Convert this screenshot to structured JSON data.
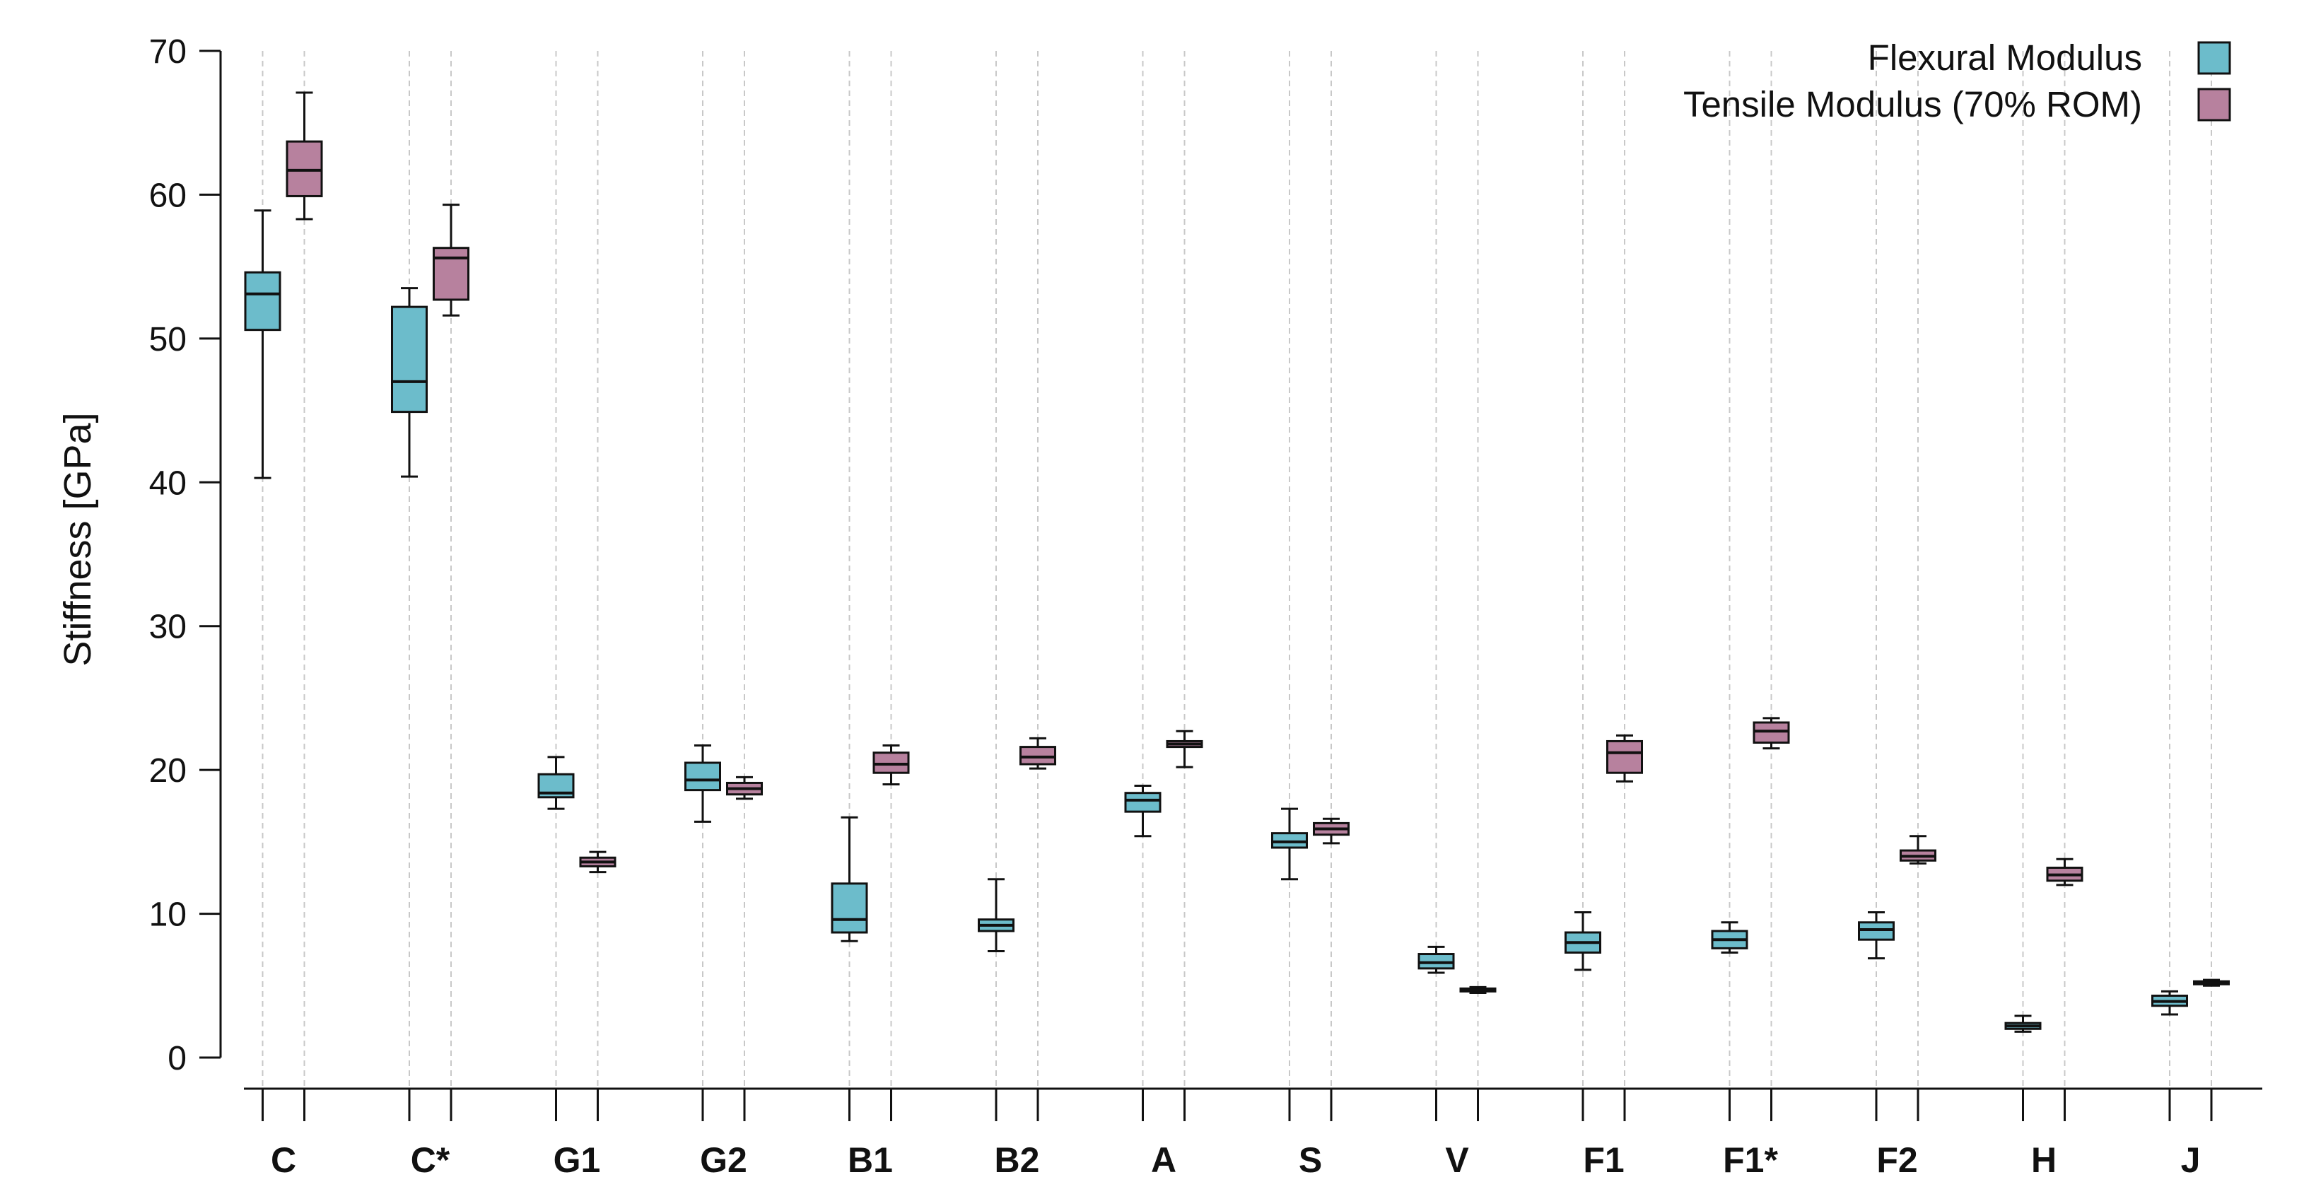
{
  "chart_data": {
    "type": "box",
    "title": "",
    "xlabel": "",
    "ylabel": "Stiffness [GPa]",
    "ylim": [
      0,
      70
    ],
    "yticks": [
      0,
      10,
      20,
      30,
      40,
      50,
      60,
      70
    ],
    "grid": "vertical dashed lines at each box position",
    "legend_placement": "top-right",
    "categories": [
      "C",
      "C*",
      "G1",
      "G2",
      "B1",
      "B2",
      "A",
      "S",
      "V",
      "F1",
      "F1*",
      "F2",
      "H",
      "J"
    ],
    "series": [
      {
        "name": "Flexural Modulus",
        "color": "#6cbccb",
        "boxes": [
          {
            "min": 40.3,
            "q1": 50.6,
            "median": 53.1,
            "q3": 54.6,
            "max": 58.9
          },
          {
            "min": 40.4,
            "q1": 44.9,
            "median": 47.0,
            "q3": 52.2,
            "max": 53.5
          },
          {
            "min": 17.3,
            "q1": 18.1,
            "median": 18.4,
            "q3": 19.7,
            "max": 20.9
          },
          {
            "min": 16.4,
            "q1": 18.6,
            "median": 19.3,
            "q3": 20.5,
            "max": 21.7
          },
          {
            "min": 8.1,
            "q1": 8.7,
            "median": 9.6,
            "q3": 12.1,
            "max": 16.7
          },
          {
            "min": 7.4,
            "q1": 8.8,
            "median": 9.2,
            "q3": 9.6,
            "max": 12.4
          },
          {
            "min": 15.4,
            "q1": 17.1,
            "median": 17.9,
            "q3": 18.4,
            "max": 18.9
          },
          {
            "min": 12.4,
            "q1": 14.6,
            "median": 15.0,
            "q3": 15.6,
            "max": 17.3
          },
          {
            "min": 5.9,
            "q1": 6.2,
            "median": 6.6,
            "q3": 7.2,
            "max": 7.7
          },
          {
            "min": 6.1,
            "q1": 7.3,
            "median": 8.0,
            "q3": 8.7,
            "max": 10.1
          },
          {
            "min": 7.3,
            "q1": 7.6,
            "median": 8.2,
            "q3": 8.8,
            "max": 9.4
          },
          {
            "min": 6.9,
            "q1": 8.2,
            "median": 8.9,
            "q3": 9.4,
            "max": 10.1
          },
          {
            "min": 1.8,
            "q1": 2.0,
            "median": 2.2,
            "q3": 2.4,
            "max": 2.9
          },
          {
            "min": 3.0,
            "q1": 3.6,
            "median": 3.9,
            "q3": 4.3,
            "max": 4.6
          }
        ]
      },
      {
        "name": "Tensile Modulus (70% ROM)",
        "color": "#b7819e",
        "boxes": [
          {
            "min": 58.3,
            "q1": 59.9,
            "median": 61.7,
            "q3": 63.7,
            "max": 67.1
          },
          {
            "min": 51.6,
            "q1": 52.7,
            "median": 55.6,
            "q3": 56.3,
            "max": 59.3
          },
          {
            "min": 12.9,
            "q1": 13.3,
            "median": 13.6,
            "q3": 13.9,
            "max": 14.3
          },
          {
            "min": 18.0,
            "q1": 18.3,
            "median": 18.7,
            "q3": 19.1,
            "max": 19.5
          },
          {
            "min": 19.0,
            "q1": 19.8,
            "median": 20.4,
            "q3": 21.2,
            "max": 21.7
          },
          {
            "min": 20.1,
            "q1": 20.4,
            "median": 20.9,
            "q3": 21.6,
            "max": 22.2
          },
          {
            "min": 20.2,
            "q1": 21.6,
            "median": 21.8,
            "q3": 22.0,
            "max": 22.7
          },
          {
            "min": 14.9,
            "q1": 15.5,
            "median": 15.9,
            "q3": 16.3,
            "max": 16.6
          },
          {
            "min": 4.5,
            "q1": 4.6,
            "median": 4.7,
            "q3": 4.8,
            "max": 4.9
          },
          {
            "min": 19.2,
            "q1": 19.8,
            "median": 21.2,
            "q3": 22.0,
            "max": 22.4
          },
          {
            "min": 21.5,
            "q1": 21.9,
            "median": 22.7,
            "q3": 23.3,
            "max": 23.6
          },
          {
            "min": 13.5,
            "q1": 13.7,
            "median": 14.0,
            "q3": 14.4,
            "max": 15.4
          },
          {
            "min": 12.0,
            "q1": 12.3,
            "median": 12.7,
            "q3": 13.2,
            "max": 13.8
          },
          {
            "min": 5.0,
            "q1": 5.1,
            "median": 5.2,
            "q3": 5.3,
            "max": 5.4
          }
        ]
      }
    ]
  }
}
